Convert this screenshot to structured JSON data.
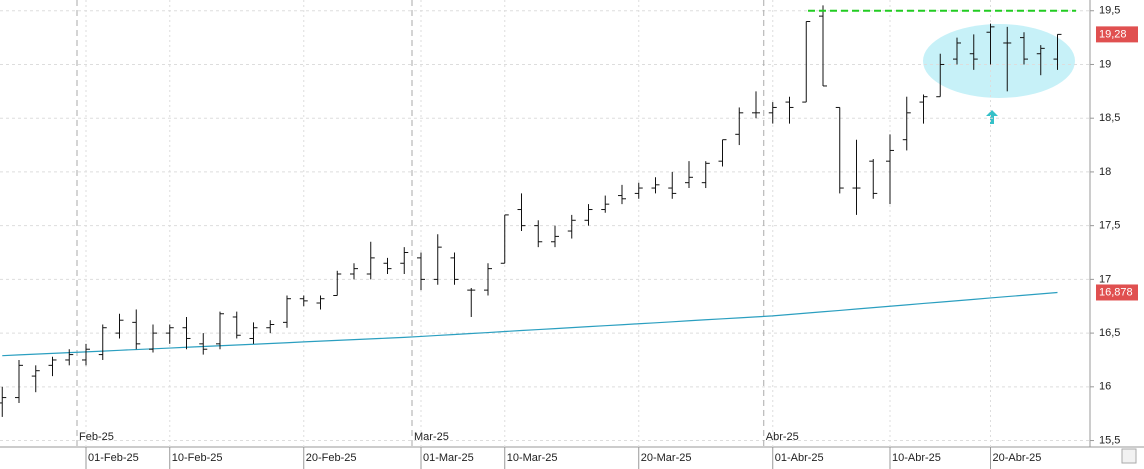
{
  "chart_data": {
    "type": "ohlc",
    "categories": [
      null,
      null,
      null,
      null,
      null,
      "01-Feb-25",
      null,
      null,
      null,
      null,
      "10-Feb-25",
      null,
      null,
      null,
      null,
      null,
      null,
      null,
      "20-Feb-25",
      null,
      null,
      null,
      null,
      null,
      null,
      "01-Mar-25",
      null,
      null,
      null,
      null,
      "10-Mar-25",
      null,
      null,
      null,
      null,
      null,
      null,
      null,
      "20-Mar-25",
      null,
      null,
      null,
      null,
      null,
      null,
      null,
      "01-Abr-25",
      null,
      null,
      null,
      null,
      null,
      null,
      "10-Abr-25",
      null,
      null,
      null,
      null,
      null,
      "20-Abr-25",
      null,
      null,
      null,
      null
    ],
    "month_labels": [
      null,
      null,
      null,
      null,
      null,
      "Feb-25",
      null,
      null,
      null,
      null,
      null,
      null,
      null,
      null,
      null,
      null,
      null,
      null,
      null,
      null,
      null,
      null,
      null,
      null,
      null,
      "Mar-25",
      null,
      null,
      null,
      null,
      null,
      null,
      null,
      null,
      null,
      null,
      null,
      null,
      null,
      null,
      null,
      null,
      null,
      null,
      null,
      null,
      "Abr-25",
      null,
      null,
      null,
      null,
      null,
      null,
      null,
      null,
      null,
      null,
      null,
      null,
      null,
      null,
      null,
      null,
      null
    ],
    "ohlc": {
      "color": "#111111",
      "last_label": "19,28",
      "open": [
        15.85,
        15.9,
        16.1,
        16.2,
        16.25,
        16.25,
        16.3,
        16.5,
        16.6,
        16.35,
        16.5,
        16.55,
        16.4,
        16.4,
        16.65,
        16.45,
        16.55,
        16.6,
        16.82,
        16.78,
        16.85,
        17.05,
        17.05,
        17.15,
        17.15,
        17.2,
        17.0,
        17.2,
        16.9,
        16.9,
        17.15,
        17.65,
        17.5,
        17.35,
        17.45,
        17.55,
        17.65,
        17.78,
        17.8,
        17.85,
        17.85,
        17.9,
        17.9,
        18.1,
        18.35,
        18.55,
        18.55,
        18.65,
        18.65,
        19.45,
        18.6,
        17.85,
        18.1,
        18.1,
        18.3,
        18.65,
        18.7,
        19.05,
        19.1,
        19.3,
        19.2,
        19.25,
        19.1,
        19.05
      ],
      "high": [
        16.0,
        16.25,
        16.2,
        16.28,
        16.35,
        16.4,
        16.58,
        16.68,
        16.72,
        16.58,
        16.58,
        16.65,
        16.5,
        16.7,
        16.7,
        16.6,
        16.62,
        16.85,
        16.85,
        16.85,
        17.08,
        17.15,
        17.35,
        17.2,
        17.3,
        17.25,
        17.42,
        17.25,
        16.92,
        17.15,
        17.6,
        17.8,
        17.55,
        17.5,
        17.6,
        17.7,
        17.78,
        17.88,
        17.9,
        17.95,
        18.0,
        18.1,
        18.1,
        18.3,
        18.6,
        18.75,
        18.65,
        18.7,
        19.4,
        19.55,
        18.6,
        18.3,
        18.12,
        18.35,
        18.7,
        18.72,
        19.1,
        19.25,
        19.28,
        19.38,
        19.35,
        19.3,
        19.18,
        19.28
      ],
      "low": [
        15.72,
        15.85,
        15.95,
        16.1,
        16.2,
        16.2,
        16.25,
        16.45,
        16.35,
        16.32,
        16.4,
        16.35,
        16.3,
        16.35,
        16.45,
        16.4,
        16.5,
        16.55,
        16.75,
        16.72,
        16.85,
        17.0,
        17.0,
        17.05,
        17.05,
        16.9,
        16.95,
        16.95,
        16.65,
        16.85,
        17.15,
        17.45,
        17.3,
        17.3,
        17.38,
        17.5,
        17.62,
        17.7,
        17.75,
        17.8,
        17.75,
        17.85,
        17.85,
        18.05,
        18.25,
        18.5,
        18.45,
        18.45,
        18.65,
        18.8,
        17.8,
        17.6,
        17.75,
        17.7,
        18.2,
        18.45,
        18.7,
        19.0,
        18.95,
        19.0,
        18.75,
        19.0,
        18.9,
        18.95
      ],
      "close": [
        15.9,
        16.2,
        16.15,
        16.25,
        16.3,
        16.35,
        16.55,
        16.62,
        16.4,
        16.5,
        16.55,
        16.45,
        16.35,
        16.68,
        16.48,
        16.55,
        16.58,
        16.82,
        16.8,
        16.82,
        17.05,
        17.1,
        17.2,
        17.1,
        17.25,
        17.0,
        17.3,
        17.0,
        16.9,
        17.1,
        17.6,
        17.5,
        17.35,
        17.4,
        17.55,
        17.65,
        17.7,
        17.75,
        17.85,
        17.88,
        17.8,
        17.95,
        18.08,
        18.3,
        18.55,
        18.55,
        18.6,
        18.6,
        19.4,
        18.8,
        17.85,
        17.85,
        17.8,
        18.2,
        18.55,
        18.7,
        19.0,
        19.2,
        19.05,
        19.35,
        19.2,
        19.05,
        19.15,
        19.28
      ]
    },
    "moving_average": {
      "color": "#2b9fc0",
      "last_label": "16,878",
      "values": [
        16.29,
        16.297,
        16.304,
        16.311,
        16.318,
        16.325,
        16.332,
        16.34,
        16.347,
        16.354,
        16.361,
        16.368,
        16.375,
        16.382,
        16.389,
        16.396,
        16.403,
        16.41,
        16.418,
        16.425,
        16.432,
        16.439,
        16.446,
        16.453,
        16.46,
        16.469,
        16.478,
        16.487,
        16.496,
        16.505,
        16.515,
        16.524,
        16.533,
        16.542,
        16.551,
        16.56,
        16.569,
        16.578,
        16.587,
        16.596,
        16.605,
        16.615,
        16.624,
        16.633,
        16.642,
        16.651,
        16.66,
        16.673,
        16.686,
        16.699,
        16.711,
        16.724,
        16.737,
        16.75,
        16.763,
        16.776,
        16.788,
        16.801,
        16.814,
        16.827,
        16.84,
        16.852,
        16.865,
        16.878
      ]
    },
    "resistance": {
      "value": 19.5,
      "color": "#22cc22"
    },
    "ylim": [
      15.44,
      19.6
    ],
    "yticks": [
      {
        "value": 15.5,
        "label": "15,5"
      },
      16,
      {
        "value": 16.5,
        "label": "16,5"
      },
      17,
      {
        "value": 17.5,
        "label": "17,5"
      },
      18,
      {
        "value": 18.5,
        "label": "18,5"
      },
      19,
      {
        "value": 19.5,
        "label": "19,5"
      }
    ],
    "grid": true
  }
}
